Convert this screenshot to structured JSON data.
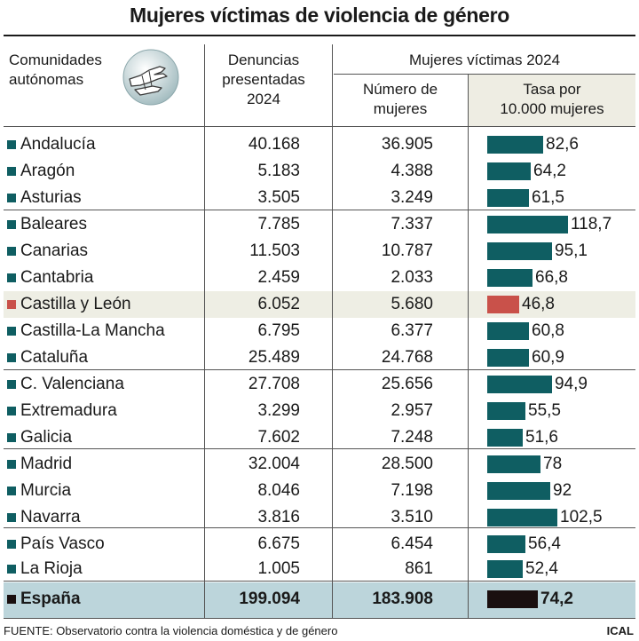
{
  "header": {
    "title": "Mujeres víctimas de violencia de género",
    "col_region_line1": "Comunidades",
    "col_region_line2": "autónomas",
    "col_den_line1": "Denuncias",
    "col_den_line2": "presentadas",
    "col_den_line3": "2024",
    "group_label": "Mujeres víctimas 2024",
    "col_num_line1": "Número de",
    "col_num_line2": "mujeres",
    "col_tasa_line1": "Tasa por",
    "col_tasa_line2": "10.000 mujeres"
  },
  "logo_icon": "hand-gesture-icon",
  "colors": {
    "bar": "#0f5e62",
    "highlight_bar": "#c9514a",
    "total_bar": "#1a0f0f",
    "highlight_row_bg": "#eeeee4",
    "total_row_bg": "#bcd5db"
  },
  "rows": [
    {
      "name": "Andalucía",
      "denuncias": "40.168",
      "mujeres": "36.905",
      "tasa_label": "82,6"
    },
    {
      "name": "Aragón",
      "denuncias": "5.183",
      "mujeres": "4.388",
      "tasa_label": "64,2"
    },
    {
      "name": "Asturias",
      "denuncias": "3.505",
      "mujeres": "3.249",
      "tasa_label": "61,5"
    },
    {
      "name": "Baleares",
      "denuncias": "7.785",
      "mujeres": "7.337",
      "tasa_label": "118,7"
    },
    {
      "name": "Canarias",
      "denuncias": "11.503",
      "mujeres": "10.787",
      "tasa_label": "95,1"
    },
    {
      "name": "Cantabria",
      "denuncias": "2.459",
      "mujeres": "2.033",
      "tasa_label": "66,8"
    },
    {
      "name": "Castilla y León",
      "denuncias": "6.052",
      "mujeres": "5.680",
      "tasa_label": "46,8",
      "highlight": true
    },
    {
      "name": "Castilla-La Mancha",
      "denuncias": "6.795",
      "mujeres": "6.377",
      "tasa_label": "60,8"
    },
    {
      "name": "Cataluña",
      "denuncias": "25.489",
      "mujeres": "24.768",
      "tasa_label": "60,9"
    },
    {
      "name": "C. Valenciana",
      "denuncias": "27.708",
      "mujeres": "25.656",
      "tasa_label": "94,9"
    },
    {
      "name": "Extremadura",
      "denuncias": "3.299",
      "mujeres": "2.957",
      "tasa_label": "55,5"
    },
    {
      "name": "Galicia",
      "denuncias": "7.602",
      "mujeres": "7.248",
      "tasa_label": "51,6"
    },
    {
      "name": "Madrid",
      "denuncias": "32.004",
      "mujeres": "28.500",
      "tasa_label": "78"
    },
    {
      "name": "Murcia",
      "denuncias": "8.046",
      "mujeres": "7.198",
      "tasa_label": "92"
    },
    {
      "name": "Navarra",
      "denuncias": "3.816",
      "mujeres": "3.510",
      "tasa_label": "102,5"
    },
    {
      "name": "País Vasco",
      "denuncias": "6.675",
      "mujeres": "6.454",
      "tasa_label": "56,4"
    },
    {
      "name": "La Rioja",
      "denuncias": "1.005",
      "mujeres": "861",
      "tasa_label": "52,4"
    },
    {
      "name": "España",
      "denuncias": "199.094",
      "mujeres": "183.908",
      "tasa_label": "74,2",
      "total": true
    }
  ],
  "chart_data": {
    "type": "table",
    "title": "Mujeres víctimas de violencia de género",
    "columns": [
      "Comunidades autónomas",
      "Denuncias presentadas 2024",
      "Número de mujeres",
      "Tasa por 10.000 mujeres"
    ],
    "categories": [
      "Andalucía",
      "Aragón",
      "Asturias",
      "Baleares",
      "Canarias",
      "Cantabria",
      "Castilla y León",
      "Castilla-La Mancha",
      "Cataluña",
      "C. Valenciana",
      "Extremadura",
      "Galicia",
      "Madrid",
      "Murcia",
      "Navarra",
      "País Vasco",
      "La Rioja",
      "España"
    ],
    "series": [
      {
        "name": "Denuncias presentadas 2024",
        "values": [
          40168,
          5183,
          3505,
          7785,
          11503,
          2459,
          6052,
          6795,
          25489,
          27708,
          3299,
          7602,
          32004,
          8046,
          3816,
          6675,
          1005,
          199094
        ]
      },
      {
        "name": "Número de mujeres",
        "values": [
          36905,
          4388,
          3249,
          7337,
          10787,
          2033,
          5680,
          6377,
          24768,
          25656,
          2957,
          7248,
          28500,
          7198,
          3510,
          6454,
          861,
          183908
        ]
      },
      {
        "name": "Tasa por 10.000 mujeres",
        "values": [
          82.6,
          64.2,
          61.5,
          118.7,
          95.1,
          66.8,
          46.8,
          60.8,
          60.9,
          94.9,
          55.5,
          51.6,
          78,
          92,
          102.5,
          56.4,
          52.4,
          74.2
        ]
      }
    ],
    "bar_max_value": 118.7
  },
  "footer": {
    "source": "FUENTE: Observatorio contra la violencia doméstica y de género",
    "credit": "ICAL"
  }
}
